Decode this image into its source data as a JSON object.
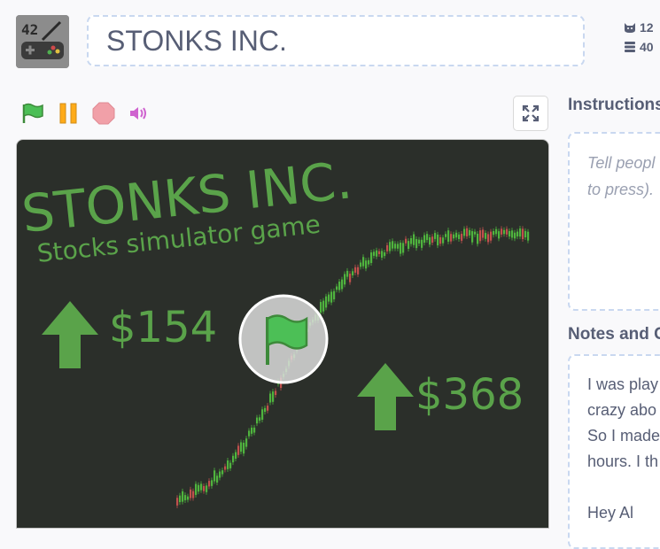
{
  "project": {
    "title": "STONKS INC."
  },
  "stats": {
    "loves": "12",
    "views": "40"
  },
  "controls": {
    "green_flag": "green-flag-icon",
    "pause": "pause-icon",
    "stop": "stop-icon",
    "sound": "sound-icon",
    "fullscreen": "fullscreen-icon"
  },
  "stage": {
    "title": "STONKS INC.",
    "subtitle": "Stocks simulator game",
    "price_left": "$154",
    "price_right": "$368",
    "colors": {
      "bg": "#2b2f2a",
      "text": "#5aa34a",
      "candle_up": "#4fb43e",
      "candle_down": "#c0504d"
    }
  },
  "instructions": {
    "heading": "Instructions",
    "lines": [
      "Tell peopl",
      "to press)."
    ]
  },
  "notes": {
    "heading": "Notes and C",
    "lines": [
      "I was play",
      "crazy abo",
      "So I made",
      "hours. I th",
      "",
      "Hey Al"
    ]
  }
}
